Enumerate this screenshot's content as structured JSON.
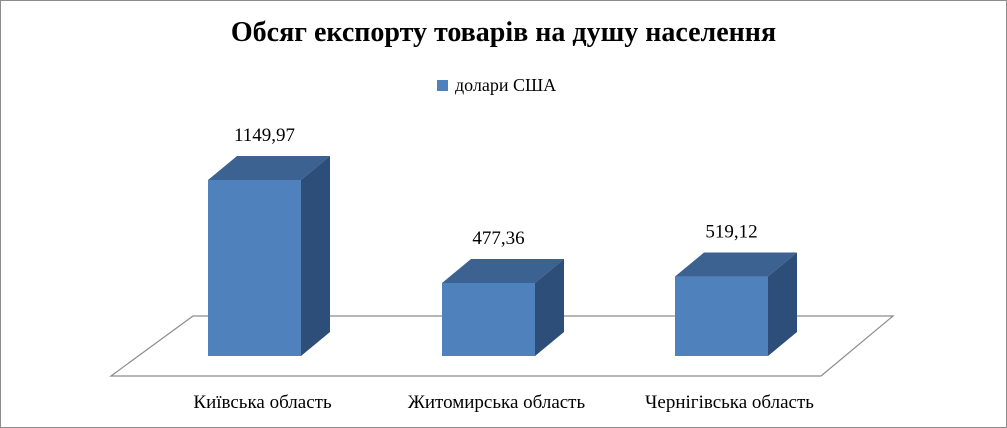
{
  "chart_data": {
    "type": "bar",
    "title": "Обсяг експорту товарів на душу населення",
    "categories": [
      "Київська область",
      "Житомирська область",
      "Чернігівська область"
    ],
    "series": [
      {
        "name": "долари США",
        "values": [
          1149.97,
          477.36,
          519.12
        ]
      }
    ],
    "data_labels": [
      "1149,97",
      "477,36",
      "519,12"
    ],
    "ylim": [
      0,
      1149.97
    ],
    "grid": false,
    "legend_position": "top",
    "style": "3d-column"
  },
  "colors": {
    "front": "#4f81bd",
    "top": "#3b6290",
    "side": "#2d4e78",
    "floor_stroke": "#8c8c8c"
  }
}
